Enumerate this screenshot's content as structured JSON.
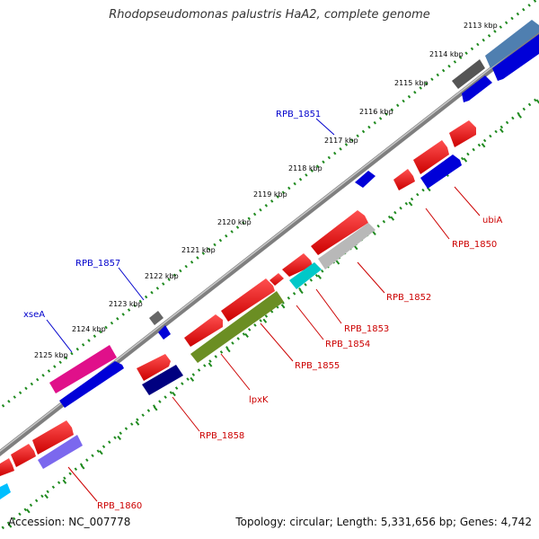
{
  "title": "Rhodopseudomonas palustris HaA2, complete genome",
  "accession": "Accession: NC_007778",
  "summary": "Topology: circular; Length: 5,331,656 bp; Genes: 4,742",
  "colors": {
    "backbone": "#7f7f7f",
    "tick_dots": "#1f8a1f",
    "label_red": "#cc0000",
    "label_blue": "#0000cc"
  },
  "kbp_ticks": [
    "2113 kbp",
    "2114 kbp",
    "2115 kbp",
    "2116 kbp",
    "2117 kbp",
    "2118 kbp",
    "2119 kbp",
    "2120 kbp",
    "2121 kbp",
    "2122 kbp",
    "2123 kbp",
    "2124 kbp",
    "2125 kbp"
  ],
  "gene_labels": {
    "ubiA": "ubiA",
    "RPB_1850": "RPB_1850",
    "RPB_1851": "RPB_1851",
    "RPB_1852": "RPB_1852",
    "RPB_1853": "RPB_1853",
    "RPB_1854": "RPB_1854",
    "RPB_1855": "RPB_1855",
    "lpxK": "lpxK",
    "RPB_1857": "RPB_1857",
    "xseA": "xseA",
    "RPB_1858": "RPB_1858",
    "RPB_1860": "RPB_1860"
  }
}
